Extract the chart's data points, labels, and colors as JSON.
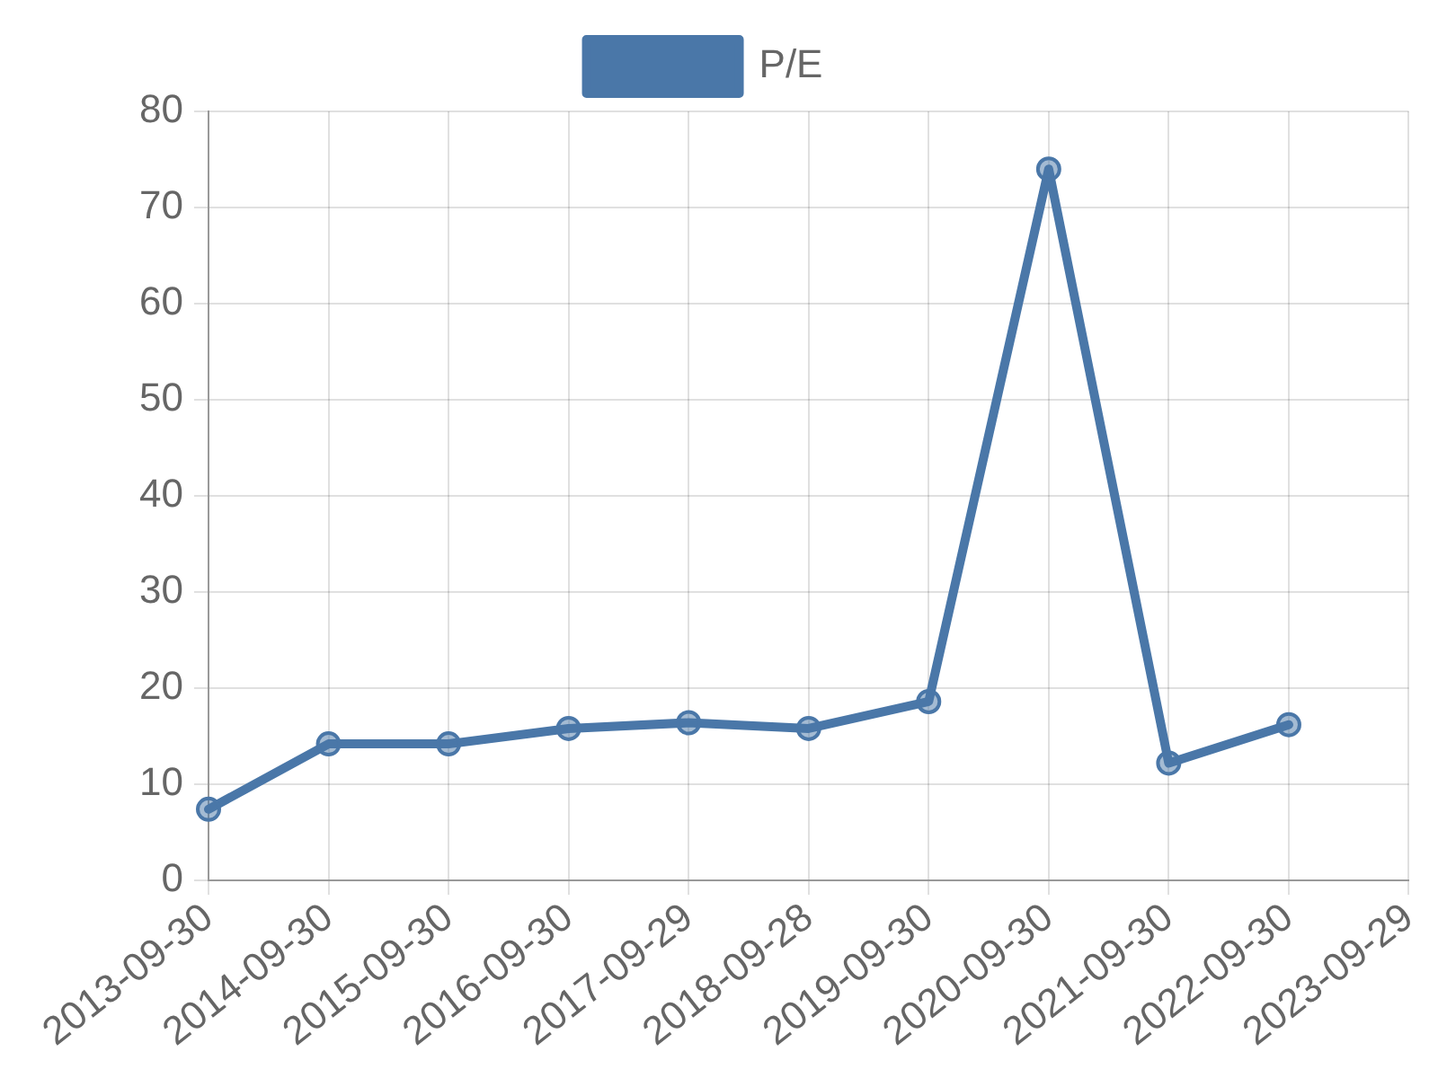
{
  "chart_data": {
    "type": "line",
    "categories": [
      "2013-09-30",
      "2014-09-30",
      "2015-09-30",
      "2016-09-30",
      "2017-09-29",
      "2018-09-28",
      "2019-09-30",
      "2020-09-30",
      "2021-09-30",
      "2022-09-30",
      "2023-09-29"
    ],
    "series": [
      {
        "name": "P/E",
        "color": "#4a77a8",
        "values": [
          7.4,
          14.2,
          14.2,
          15.8,
          16.4,
          15.8,
          18.6,
          74.0,
          12.2,
          16.2,
          null
        ]
      }
    ],
    "ylim": [
      0,
      80
    ],
    "yticks": [
      0,
      10,
      20,
      30,
      40,
      50,
      60,
      70,
      80
    ],
    "grid": true,
    "legend": "top",
    "marker": "circle",
    "line_style": "solid"
  }
}
